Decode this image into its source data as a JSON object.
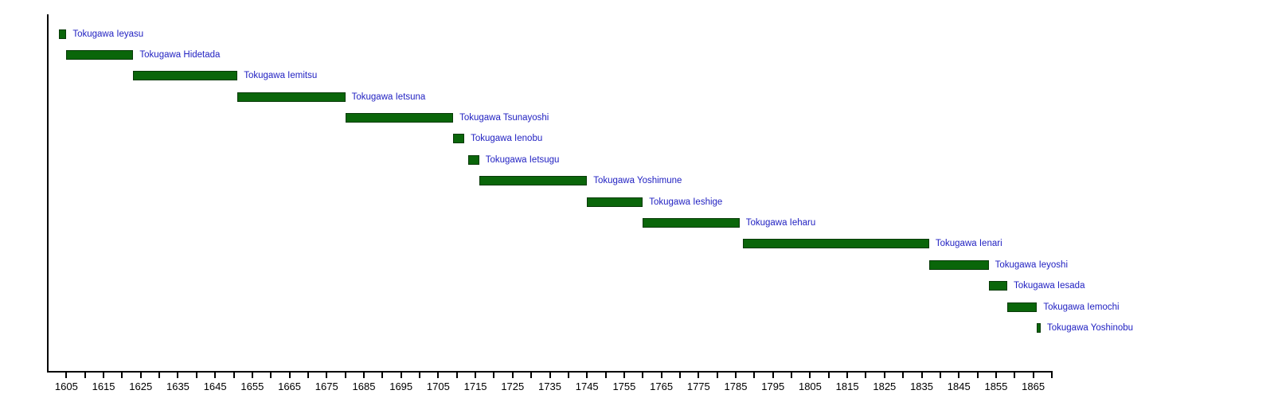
{
  "chart_data": {
    "type": "bar",
    "variant": "timeline-gantt",
    "title": "",
    "xlabel": "",
    "ylabel": "",
    "legend": "none",
    "grid": false,
    "x_axis": {
      "min": 1600,
      "max": 1870,
      "minor_tick_step": 5,
      "label_step": 10,
      "tick_labels": [
        "1605",
        "1615",
        "1625",
        "1635",
        "1645",
        "1655",
        "1665",
        "1675",
        "1685",
        "1695",
        "1705",
        "1715",
        "1725",
        "1735",
        "1745",
        "1755",
        "1765",
        "1775",
        "1785",
        "1795",
        "1805",
        "1815",
        "1825",
        "1835",
        "1845",
        "1855",
        "1865"
      ],
      "tick_label_years": [
        1605,
        1615,
        1625,
        1635,
        1645,
        1655,
        1665,
        1675,
        1685,
        1695,
        1705,
        1715,
        1725,
        1735,
        1745,
        1755,
        1765,
        1775,
        1785,
        1795,
        1805,
        1815,
        1825,
        1835,
        1845,
        1855,
        1865
      ]
    },
    "series": [
      {
        "label": "Tokugawa Ieyasu",
        "start": 1603,
        "end": 1605
      },
      {
        "label": "Tokugawa Hidetada",
        "start": 1605,
        "end": 1623
      },
      {
        "label": "Tokugawa Iemitsu",
        "start": 1623,
        "end": 1651
      },
      {
        "label": "Tokugawa Ietsuna",
        "start": 1651,
        "end": 1680
      },
      {
        "label": "Tokugawa Tsunayoshi",
        "start": 1680,
        "end": 1709
      },
      {
        "label": "Tokugawa Ienobu",
        "start": 1709,
        "end": 1712
      },
      {
        "label": "Tokugawa Ietsugu",
        "start": 1713,
        "end": 1716
      },
      {
        "label": "Tokugawa Yoshimune",
        "start": 1716,
        "end": 1745
      },
      {
        "label": "Tokugawa Ieshige",
        "start": 1745,
        "end": 1760
      },
      {
        "label": "Tokugawa Ieharu",
        "start": 1760,
        "end": 1786
      },
      {
        "label": "Tokugawa Ienari",
        "start": 1787,
        "end": 1837
      },
      {
        "label": "Tokugawa Ieyoshi",
        "start": 1837,
        "end": 1853
      },
      {
        "label": "Tokugawa Iesada",
        "start": 1853,
        "end": 1858
      },
      {
        "label": "Tokugawa Iemochi",
        "start": 1858,
        "end": 1866
      },
      {
        "label": "Tokugawa Yoshinobu",
        "start": 1866,
        "end": 1867
      }
    ],
    "colors": {
      "background": "#ffffff",
      "bar_fill": "#0a660a",
      "bar_border": "#083a08",
      "bar_label_text": "#2222c2",
      "axis": "#000000",
      "tick_text": "#000000"
    }
  }
}
